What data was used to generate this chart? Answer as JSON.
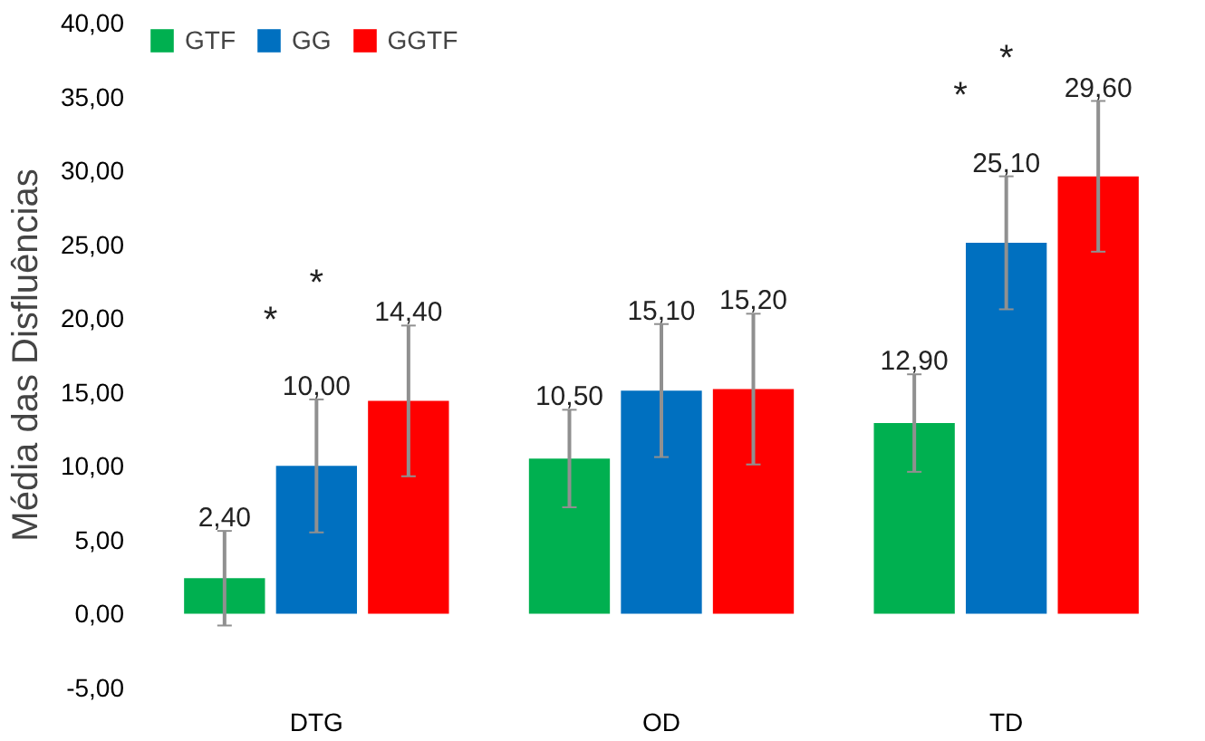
{
  "chart_data": {
    "type": "bar",
    "categories": [
      "DTG",
      "OD",
      "TD"
    ],
    "ylabel": "Média das Disfluências",
    "series": [
      {
        "name": "GTF",
        "color": "#00b050",
        "values": [
          2.4,
          10.5,
          12.9
        ],
        "errors": [
          3.2,
          3.3,
          3.3
        ],
        "value_labels": [
          "2,40",
          "10,50",
          "12,90"
        ]
      },
      {
        "name": "GG",
        "color": "#0070c0",
        "values": [
          10.0,
          15.1,
          25.1
        ],
        "errors": [
          4.5,
          4.5,
          4.5
        ],
        "value_labels": [
          "10,00",
          "15,10",
          "25,10"
        ]
      },
      {
        "name": "GGTF",
        "color": "#ff0000",
        "values": [
          14.4,
          15.2,
          29.6
        ],
        "errors": [
          5.1,
          5.1,
          5.1
        ],
        "value_labels": [
          "14,40",
          "15,20",
          "29,60"
        ]
      }
    ],
    "ylim": [
      -5,
      40
    ],
    "yticks": [
      {
        "value": -5,
        "label": "-5,00"
      },
      {
        "value": 0,
        "label": "0,00"
      },
      {
        "value": 5,
        "label": "5,00"
      },
      {
        "value": 10,
        "label": "10,00"
      },
      {
        "value": 15,
        "label": "15,00"
      },
      {
        "value": 20,
        "label": "20,00"
      },
      {
        "value": 25,
        "label": "25,00"
      },
      {
        "value": 30,
        "label": "30,00"
      },
      {
        "value": 35,
        "label": "35,00"
      },
      {
        "value": 40,
        "label": "40,00"
      }
    ],
    "annotations": [
      "*",
      "*",
      "*",
      "*"
    ],
    "grid": false,
    "legend": "top left"
  }
}
